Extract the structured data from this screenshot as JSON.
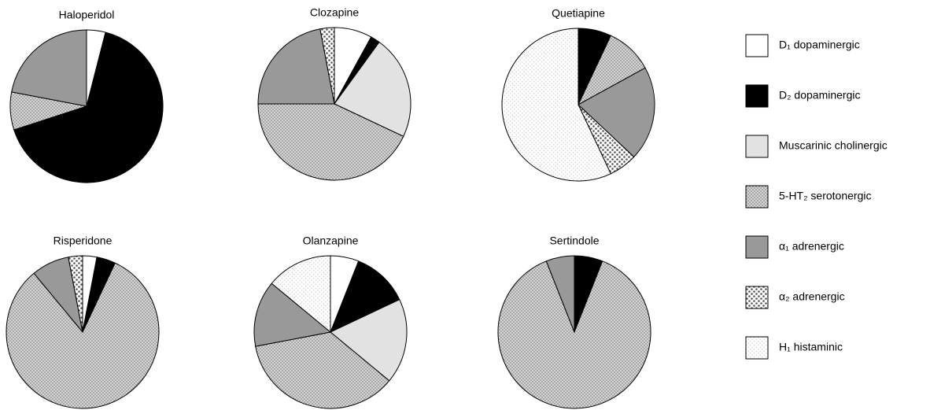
{
  "chart_data": {
    "type": "pie",
    "series": [
      {
        "name": "D₁ dopaminergic",
        "color": "#ffffff"
      },
      {
        "name": "D₂ dopaminergic",
        "color": "#000000"
      },
      {
        "name": "Muscarinic cholinergic",
        "color": "#e2e2e2"
      },
      {
        "name": "5-HT₂ serotonergic",
        "color": "#d4d4d4",
        "pattern": "dots"
      },
      {
        "name": "α₁ adrenergic",
        "color": "#999999"
      },
      {
        "name": "α₂ adrenergic",
        "color": "#ffffff",
        "pattern": "coarse-dots"
      },
      {
        "name": "H₁ histaminic",
        "color": "#ffffff",
        "pattern": "faint-dots"
      }
    ],
    "charts": [
      {
        "title": "Haloperidol",
        "values": [
          4,
          66,
          0,
          8,
          22,
          0,
          0
        ]
      },
      {
        "title": "Clozapine",
        "values": [
          8,
          2,
          22,
          43,
          22,
          3,
          0
        ]
      },
      {
        "title": "Quetiapine",
        "values": [
          0,
          7,
          0,
          10,
          20,
          6,
          57
        ]
      },
      {
        "title": "Risperidone",
        "values": [
          3,
          4,
          0,
          82,
          8,
          3,
          0
        ]
      },
      {
        "title": "Olanzapine",
        "values": [
          6,
          12,
          18,
          36,
          14,
          0,
          14
        ]
      },
      {
        "title": "Sertindole",
        "values": [
          0,
          6,
          0,
          88,
          6,
          0,
          0
        ]
      }
    ]
  }
}
